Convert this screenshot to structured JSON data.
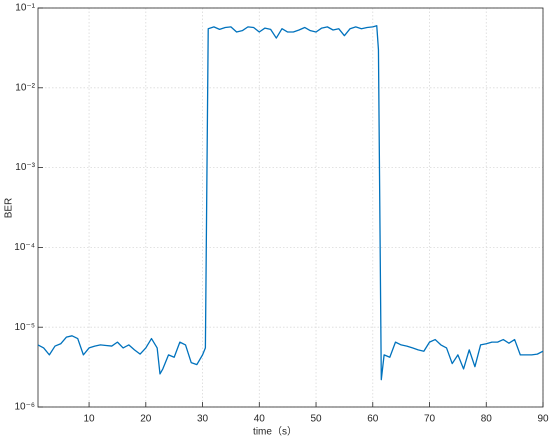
{
  "chart_data": {
    "type": "line",
    "log_y": true,
    "grid": true,
    "xlabel": "time（s）",
    "ylabel": "BER",
    "xlim": [
      1,
      90
    ],
    "xticks": [
      10,
      20,
      30,
      40,
      50,
      60,
      70,
      80,
      90
    ],
    "ylim": [
      1e-06,
      0.1
    ],
    "yticks": [
      {
        "value": 1e-06,
        "label": "10⁻⁶"
      },
      {
        "value": 1e-05,
        "label": "10⁻⁵"
      },
      {
        "value": 0.0001,
        "label": "10⁻⁴"
      },
      {
        "value": 0.001,
        "label": "10⁻³"
      },
      {
        "value": 0.01,
        "label": "10⁻²"
      },
      {
        "value": 0.1,
        "label": "10⁻¹"
      }
    ],
    "x": [
      1,
      2,
      3,
      4,
      5,
      6,
      7,
      8,
      9,
      10,
      11,
      12,
      13,
      14,
      15,
      16,
      17,
      18,
      19,
      20,
      21,
      22,
      22.5,
      23,
      24,
      25,
      26,
      27,
      28,
      29,
      30,
      30.5,
      31,
      32,
      33,
      34,
      35,
      36,
      37,
      38,
      39,
      40,
      41,
      42,
      43,
      44,
      45,
      46,
      47,
      48,
      49,
      50,
      51,
      52,
      53,
      54,
      55,
      56,
      57,
      58,
      59,
      60,
      60.7,
      61,
      61.5,
      62,
      63,
      64,
      65,
      66,
      67,
      68,
      69,
      70,
      71,
      72,
      73,
      74,
      75,
      76,
      77,
      78,
      79,
      80,
      81,
      82,
      83,
      84,
      85,
      86,
      87,
      88,
      89,
      90
    ],
    "series": [
      {
        "name": "BER",
        "color": "#0072bd",
        "values": [
          6e-06,
          5.5e-06,
          4.5e-06,
          5.8e-06,
          6.2e-06,
          7.5e-06,
          7.8e-06,
          7.2e-06,
          4.5e-06,
          5.5e-06,
          5.8e-06,
          6e-06,
          5.9e-06,
          5.8e-06,
          6.5e-06,
          5.5e-06,
          6e-06,
          5.2e-06,
          4.6e-06,
          5.5e-06,
          7.2e-06,
          5.5e-06,
          2.6e-06,
          3e-06,
          4.5e-06,
          4.2e-06,
          6.5e-06,
          6e-06,
          3.6e-06,
          3.4e-06,
          4.5e-06,
          5.5e-06,
          0.055,
          0.058,
          0.054,
          0.057,
          0.058,
          0.05,
          0.052,
          0.058,
          0.057,
          0.05,
          0.056,
          0.054,
          0.042,
          0.055,
          0.05,
          0.05,
          0.053,
          0.057,
          0.052,
          0.05,
          0.056,
          0.058,
          0.053,
          0.055,
          0.045,
          0.055,
          0.058,
          0.055,
          0.057,
          0.058,
          0.06,
          0.03,
          2.2e-06,
          4.5e-06,
          4.2e-06,
          6.5e-06,
          6e-06,
          5.8e-06,
          5.5e-06,
          5.2e-06,
          5e-06,
          6.5e-06,
          7e-06,
          6e-06,
          5.5e-06,
          3.5e-06,
          4.5e-06,
          3e-06,
          5.2e-06,
          3.2e-06,
          6e-06,
          6.2e-06,
          6.5e-06,
          6.5e-06,
          7e-06,
          6.3e-06,
          7e-06,
          4.5e-06,
          4.5e-06,
          4.5e-06,
          4.6e-06,
          5e-06
        ]
      }
    ]
  }
}
